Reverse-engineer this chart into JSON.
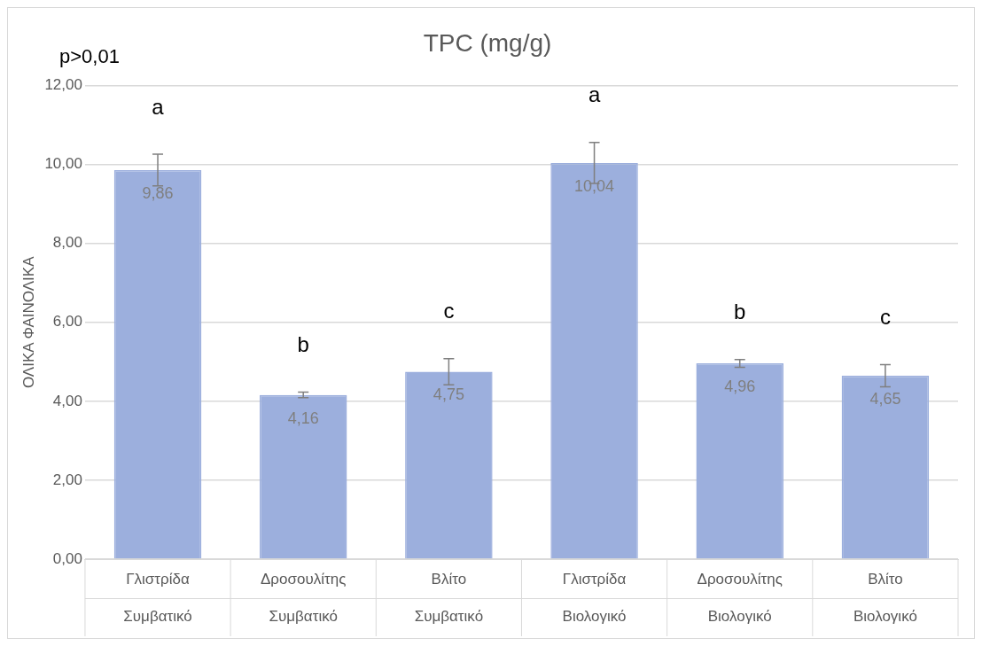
{
  "chart_data": {
    "type": "bar",
    "title": "TPC (mg/g)",
    "ylabel": "ΟΛΙΚΑ ΦΑΙΝΟΛΙΚΑ",
    "categories": [
      "Γλιστρίδα Συμβατικό",
      "Δροσουλίτης Συμβατικό",
      "Βλίτο Συμβατικό",
      "Γλιστρίδα Βιολογικό",
      "Δροσουλίτης Βιολογικό",
      "Βλίτο Βιολογικό"
    ],
    "values": [
      9.86,
      4.16,
      4.75,
      10.04,
      4.96,
      4.65
    ],
    "errors": [
      0.4,
      0.07,
      0.33,
      0.52,
      0.1,
      0.28
    ],
    "value_labels": [
      "9,86",
      "4,16",
      "4,75",
      "10,04",
      "4,96",
      "4,65"
    ],
    "color": "#9cafdd",
    "ylim": [
      0,
      12
    ],
    "yticks": [
      {
        "value": 0,
        "label": "0,00"
      },
      {
        "value": 2,
        "label": "2,00"
      },
      {
        "value": 4,
        "label": "4,00"
      },
      {
        "value": 6,
        "label": "6,00"
      },
      {
        "value": 8,
        "label": "8,00"
      },
      {
        "value": 10,
        "label": "10,00"
      },
      {
        "value": 12,
        "label": "12,00"
      }
    ],
    "grid": "y",
    "annotations": [
      "p>0,01",
      "a",
      "b",
      "c",
      "a",
      "b",
      "c"
    ]
  }
}
